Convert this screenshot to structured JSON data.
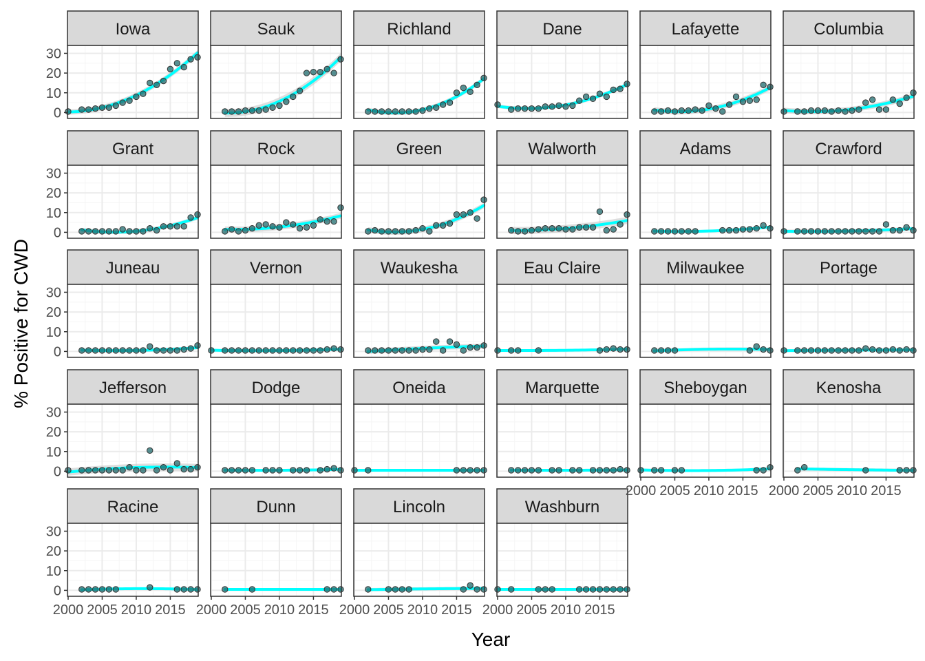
{
  "chart_data": {
    "type": "scatter",
    "title": "",
    "xlabel": "Year",
    "ylabel": "% Positive for CWD",
    "xlim": [
      1999.9,
      2019.1
    ],
    "ylim": [
      -3,
      34
    ],
    "x_ticks": [
      2000,
      2005,
      2010,
      2015
    ],
    "y_ticks": [
      0,
      10,
      20,
      30
    ],
    "grid": true,
    "legend": "none",
    "ncol": 6,
    "colors": {
      "point_fill": "#1f6b6d",
      "point_stroke": "#333333",
      "smooth_line": "#00ffff",
      "ribbon": "#c8c8c8",
      "strip_bg": "#d9d9d9",
      "grid_major": "#ebebeb",
      "grid_minor": "#f5f5f5",
      "panel_border": "#333333"
    },
    "panels": [
      {
        "name": "Iowa",
        "years": [
          2000,
          2002,
          2003,
          2004,
          2005,
          2006,
          2007,
          2008,
          2009,
          2010,
          2011,
          2012,
          2013,
          2014,
          2015,
          2016,
          2017,
          2018,
          2019
        ],
        "values": [
          0.5,
          1.5,
          1.5,
          2.0,
          2.5,
          2.5,
          3.5,
          5.0,
          6.0,
          8.0,
          9.5,
          15.0,
          14.0,
          16.0,
          22.0,
          25.0,
          23.0,
          27.0,
          28.0
        ]
      },
      {
        "name": "Sauk",
        "years": [
          2002,
          2003,
          2004,
          2005,
          2006,
          2007,
          2008,
          2009,
          2010,
          2011,
          2012,
          2013,
          2014,
          2015,
          2016,
          2017,
          2018,
          2019
        ],
        "values": [
          0.5,
          0.5,
          0.5,
          1.0,
          1.0,
          1.0,
          1.5,
          2.5,
          3.5,
          5.5,
          8.0,
          11.0,
          20.0,
          20.5,
          20.5,
          22.0,
          20.0,
          27.0
        ]
      },
      {
        "name": "Richland",
        "years": [
          2002,
          2003,
          2004,
          2005,
          2006,
          2007,
          2008,
          2009,
          2010,
          2011,
          2012,
          2013,
          2014,
          2015,
          2016,
          2017,
          2018,
          2019
        ],
        "values": [
          0.5,
          0.5,
          0.5,
          0.5,
          0.5,
          0.5,
          0.5,
          0.5,
          1.0,
          2.0,
          2.5,
          4.0,
          5.0,
          10.0,
          12.5,
          10.5,
          14.0,
          17.5
        ]
      },
      {
        "name": "Dane",
        "years": [
          2000,
          2002,
          2003,
          2004,
          2005,
          2006,
          2007,
          2008,
          2009,
          2010,
          2011,
          2012,
          2013,
          2014,
          2015,
          2016,
          2017,
          2018,
          2019
        ],
        "values": [
          4.0,
          1.5,
          2.0,
          2.0,
          2.0,
          2.0,
          3.0,
          3.0,
          3.5,
          3.0,
          3.5,
          6.0,
          8.0,
          7.0,
          9.5,
          8.0,
          11.5,
          12.0,
          14.5
        ]
      },
      {
        "name": "Lafayette",
        "years": [
          2002,
          2003,
          2004,
          2005,
          2006,
          2007,
          2008,
          2009,
          2010,
          2011,
          2012,
          2013,
          2014,
          2015,
          2016,
          2017,
          2018,
          2019
        ],
        "values": [
          0.5,
          0.5,
          1.0,
          0.5,
          1.0,
          1.0,
          1.5,
          1.0,
          3.5,
          2.0,
          0.5,
          4.0,
          8.0,
          5.5,
          6.0,
          6.5,
          14.0,
          13.0
        ]
      },
      {
        "name": "Columbia",
        "years": [
          2000,
          2002,
          2003,
          2004,
          2005,
          2006,
          2007,
          2008,
          2009,
          2010,
          2011,
          2012,
          2013,
          2014,
          2015,
          2016,
          2017,
          2018,
          2019
        ],
        "values": [
          0.5,
          0.5,
          0.5,
          1.0,
          1.0,
          1.0,
          0.5,
          1.0,
          0.5,
          1.0,
          1.5,
          5.0,
          6.5,
          1.5,
          1.5,
          6.5,
          4.5,
          7.5,
          10.0
        ]
      },
      {
        "name": "Grant",
        "years": [
          2002,
          2003,
          2004,
          2005,
          2006,
          2007,
          2008,
          2009,
          2010,
          2011,
          2012,
          2013,
          2014,
          2015,
          2016,
          2017,
          2018,
          2019
        ],
        "values": [
          0.5,
          0.5,
          0.5,
          0.5,
          0.5,
          0.5,
          1.5,
          0.5,
          0.5,
          0.5,
          2.0,
          1.0,
          3.0,
          3.0,
          3.0,
          3.0,
          7.5,
          9.0
        ]
      },
      {
        "name": "Rock",
        "years": [
          2002,
          2003,
          2004,
          2005,
          2006,
          2007,
          2008,
          2009,
          2010,
          2011,
          2012,
          2013,
          2014,
          2015,
          2016,
          2017,
          2018,
          2019
        ],
        "values": [
          0.5,
          1.5,
          0.5,
          1.0,
          2.0,
          3.5,
          4.0,
          3.0,
          2.5,
          5.0,
          4.0,
          2.0,
          2.5,
          3.5,
          6.5,
          5.5,
          5.5,
          12.5
        ]
      },
      {
        "name": "Green",
        "years": [
          2002,
          2003,
          2004,
          2005,
          2006,
          2007,
          2008,
          2009,
          2010,
          2011,
          2012,
          2013,
          2014,
          2015,
          2016,
          2017,
          2018,
          2019
        ],
        "values": [
          0.5,
          1.0,
          0.5,
          0.5,
          0.5,
          0.5,
          0.5,
          1.0,
          2.0,
          0.5,
          3.5,
          3.5,
          4.5,
          9.0,
          9.0,
          10.0,
          7.0,
          16.5
        ]
      },
      {
        "name": "Walworth",
        "years": [
          2002,
          2003,
          2004,
          2005,
          2006,
          2007,
          2008,
          2009,
          2010,
          2011,
          2012,
          2013,
          2014,
          2015,
          2016,
          2017,
          2018,
          2019
        ],
        "values": [
          1.0,
          0.5,
          0.5,
          1.0,
          1.5,
          2.0,
          2.0,
          2.0,
          1.5,
          1.5,
          2.5,
          2.5,
          2.5,
          10.5,
          1.0,
          1.5,
          4.0,
          9.0
        ]
      },
      {
        "name": "Adams",
        "years": [
          2002,
          2003,
          2004,
          2005,
          2006,
          2007,
          2008,
          2012,
          2013,
          2014,
          2015,
          2016,
          2017,
          2018,
          2019
        ],
        "values": [
          0.5,
          0.5,
          0.5,
          0.5,
          0.5,
          0.5,
          0.5,
          1.0,
          1.0,
          1.0,
          1.5,
          1.5,
          2.0,
          3.5,
          2.0
        ]
      },
      {
        "name": "Crawford",
        "years": [
          2000,
          2002,
          2003,
          2004,
          2005,
          2006,
          2007,
          2008,
          2009,
          2010,
          2011,
          2012,
          2013,
          2014,
          2015,
          2016,
          2017,
          2018,
          2019
        ],
        "values": [
          0.5,
          0.5,
          0.5,
          0.5,
          0.5,
          0.5,
          0.5,
          0.5,
          0.5,
          0.5,
          0.5,
          0.5,
          0.5,
          0.5,
          4.0,
          1.0,
          1.0,
          2.5,
          1.0
        ]
      },
      {
        "name": "Juneau",
        "years": [
          2002,
          2003,
          2004,
          2005,
          2006,
          2007,
          2008,
          2009,
          2010,
          2011,
          2012,
          2013,
          2014,
          2015,
          2016,
          2017,
          2018,
          2019
        ],
        "values": [
          0.5,
          0.5,
          0.5,
          0.5,
          0.5,
          0.5,
          0.5,
          0.5,
          0.5,
          0.5,
          2.5,
          0.5,
          0.5,
          0.5,
          0.5,
          1.0,
          1.5,
          3.0
        ]
      },
      {
        "name": "Vernon",
        "years": [
          2000,
          2002,
          2003,
          2004,
          2005,
          2006,
          2007,
          2008,
          2009,
          2010,
          2011,
          2012,
          2013,
          2014,
          2015,
          2016,
          2017,
          2018,
          2019
        ],
        "values": [
          0.5,
          0.5,
          0.5,
          0.5,
          0.5,
          0.5,
          0.5,
          0.5,
          0.5,
          0.5,
          0.5,
          0.5,
          0.5,
          0.5,
          0.5,
          0.5,
          1.0,
          1.5,
          1.0
        ]
      },
      {
        "name": "Waukesha",
        "years": [
          2002,
          2003,
          2004,
          2005,
          2006,
          2007,
          2008,
          2009,
          2010,
          2011,
          2012,
          2013,
          2014,
          2015,
          2016,
          2017,
          2018,
          2019
        ],
        "values": [
          0.5,
          0.5,
          0.5,
          0.5,
          0.5,
          0.5,
          0.5,
          0.5,
          1.0,
          1.0,
          5.0,
          0.5,
          5.0,
          3.5,
          0.5,
          2.0,
          2.0,
          3.0
        ]
      },
      {
        "name": "Eau Claire",
        "years": [
          2000,
          2002,
          2003,
          2006,
          2015,
          2016,
          2017,
          2018,
          2019
        ],
        "values": [
          0.5,
          0.5,
          0.5,
          0.5,
          0.5,
          1.0,
          1.5,
          1.0,
          1.0
        ]
      },
      {
        "name": "Milwaukee",
        "years": [
          2002,
          2003,
          2004,
          2005,
          2016,
          2017,
          2018,
          2019
        ],
        "values": [
          0.5,
          0.5,
          0.5,
          0.5,
          0.5,
          2.5,
          1.0,
          0.5
        ]
      },
      {
        "name": "Portage",
        "years": [
          2000,
          2002,
          2003,
          2004,
          2005,
          2006,
          2007,
          2008,
          2009,
          2010,
          2011,
          2012,
          2013,
          2014,
          2015,
          2016,
          2017,
          2018,
          2019
        ],
        "values": [
          0.5,
          0.5,
          0.5,
          0.5,
          0.5,
          0.5,
          0.5,
          0.5,
          0.5,
          0.5,
          0.5,
          1.5,
          1.0,
          0.5,
          0.5,
          1.0,
          0.5,
          1.0,
          0.5
        ]
      },
      {
        "name": "Jefferson",
        "years": [
          2000,
          2002,
          2003,
          2004,
          2005,
          2006,
          2007,
          2008,
          2009,
          2010,
          2011,
          2012,
          2013,
          2014,
          2015,
          2016,
          2017,
          2018,
          2019
        ],
        "values": [
          0.5,
          0.5,
          0.5,
          0.5,
          0.5,
          0.5,
          0.5,
          0.5,
          2.0,
          0.5,
          0.5,
          10.5,
          0.5,
          2.0,
          0.5,
          4.0,
          1.0,
          1.0,
          2.0
        ]
      },
      {
        "name": "Dodge",
        "years": [
          2002,
          2003,
          2004,
          2005,
          2006,
          2008,
          2009,
          2010,
          2012,
          2013,
          2014,
          2016,
          2017,
          2018,
          2019
        ],
        "values": [
          0.5,
          0.5,
          0.5,
          0.5,
          0.5,
          0.5,
          0.5,
          0.5,
          0.5,
          0.5,
          0.5,
          0.5,
          1.0,
          1.5,
          0.5
        ]
      },
      {
        "name": "Oneida",
        "years": [
          2000,
          2002,
          2015,
          2016,
          2017,
          2018,
          2019
        ],
        "values": [
          0.5,
          0.5,
          0.5,
          0.5,
          0.5,
          0.5,
          0.5
        ]
      },
      {
        "name": "Marquette",
        "years": [
          2002,
          2003,
          2004,
          2005,
          2006,
          2008,
          2009,
          2011,
          2012,
          2014,
          2015,
          2016,
          2017,
          2018,
          2019
        ],
        "values": [
          0.5,
          0.5,
          0.5,
          0.5,
          0.5,
          0.5,
          0.5,
          0.5,
          0.5,
          0.5,
          0.5,
          0.5,
          0.5,
          1.0,
          0.5
        ]
      },
      {
        "name": "Sheboygan",
        "years": [
          2000,
          2002,
          2003,
          2005,
          2006,
          2017,
          2018,
          2019
        ],
        "values": [
          0.5,
          0.5,
          0.5,
          0.5,
          0.5,
          0.5,
          0.5,
          2.0
        ]
      },
      {
        "name": "Kenosha",
        "years": [
          2002,
          2003,
          2012,
          2017,
          2018,
          2019
        ],
        "values": [
          0.5,
          2.0,
          0.5,
          0.5,
          0.5,
          0.5
        ]
      },
      {
        "name": "Racine",
        "years": [
          2002,
          2003,
          2004,
          2005,
          2006,
          2007,
          2012,
          2016,
          2017,
          2018,
          2019
        ],
        "values": [
          0.5,
          0.5,
          0.5,
          0.5,
          0.5,
          0.5,
          1.5,
          0.5,
          0.5,
          0.5,
          0.5
        ]
      },
      {
        "name": "Dunn",
        "years": [
          2002,
          2006,
          2017,
          2018,
          2019
        ],
        "values": [
          0.5,
          0.5,
          0.5,
          0.5,
          0.5
        ]
      },
      {
        "name": "Lincoln",
        "years": [
          2002,
          2005,
          2006,
          2007,
          2008,
          2016,
          2017,
          2018,
          2019
        ],
        "values": [
          0.5,
          0.5,
          0.5,
          0.5,
          0.5,
          0.5,
          2.5,
          0.5,
          0.5
        ]
      },
      {
        "name": "Washburn",
        "years": [
          2000,
          2002,
          2006,
          2007,
          2008,
          2012,
          2013,
          2014,
          2015,
          2016,
          2017,
          2018,
          2019
        ],
        "values": [
          0.5,
          0.5,
          0.5,
          0.5,
          0.5,
          0.5,
          0.5,
          0.5,
          0.5,
          0.5,
          0.5,
          0.5,
          0.5
        ]
      }
    ]
  }
}
